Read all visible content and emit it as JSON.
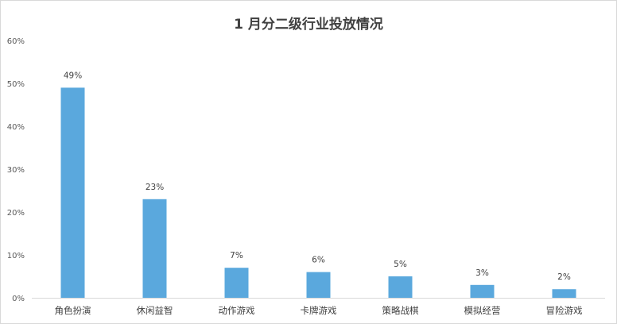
{
  "chart_data": {
    "type": "bar",
    "title": "1 月分二级行业投放情况",
    "xlabel": "",
    "ylabel": "",
    "categories": [
      "角色扮演",
      "休闲益智",
      "动作游戏",
      "卡牌游戏",
      "策略战棋",
      "模拟经营",
      "冒险游戏"
    ],
    "values": [
      49,
      23,
      7,
      6,
      5,
      3,
      2
    ],
    "data_labels": [
      "49%",
      "23%",
      "7%",
      "6%",
      "5%",
      "3%",
      "2%"
    ],
    "ylim": [
      0,
      60
    ],
    "y_ticks": [
      "0%",
      "10%",
      "20%",
      "30%",
      "40%",
      "50%",
      "60%"
    ],
    "grid": false,
    "legend": "none",
    "bar_color": "#5aa8dd"
  }
}
